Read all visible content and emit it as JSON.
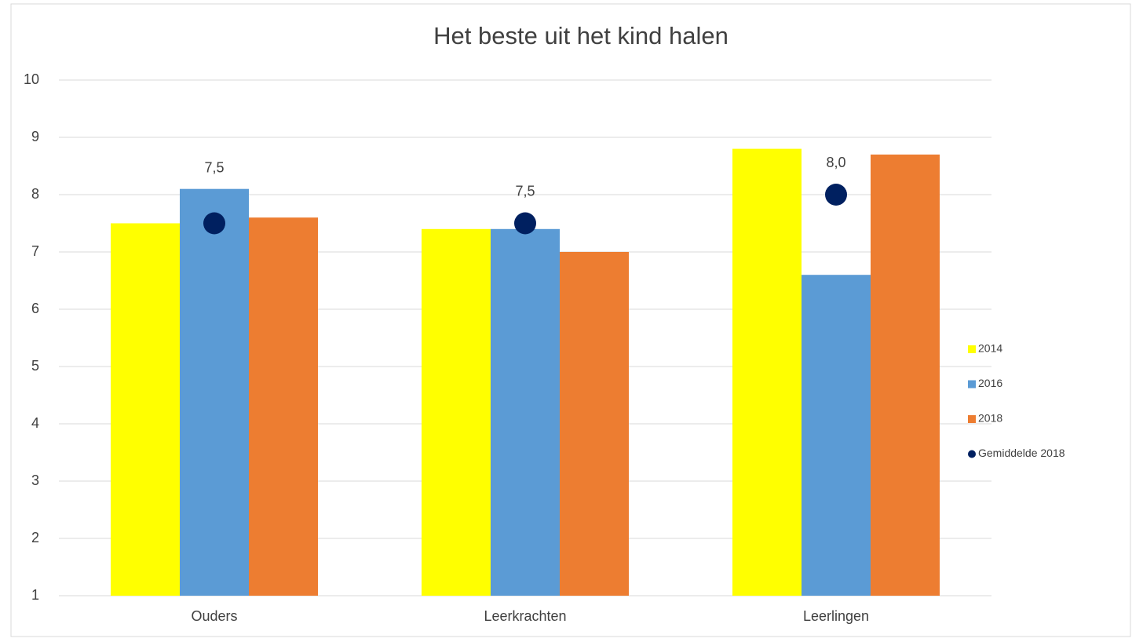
{
  "chart_data": {
    "type": "bar",
    "title": "Het beste uit het kind halen",
    "categories": [
      "Ouders",
      "Leerkrachten",
      "Leerlingen"
    ],
    "series": [
      {
        "name": "2014",
        "color": "#ffff00",
        "values": [
          7.5,
          7.4,
          8.8
        ]
      },
      {
        "name": "2016",
        "color": "#5b9bd5",
        "values": [
          8.1,
          7.4,
          6.6
        ]
      },
      {
        "name": "2018",
        "color": "#ed7d31",
        "values": [
          7.6,
          7.0,
          8.7
        ]
      },
      {
        "name": "Gemiddelde 2018",
        "color": "#002060",
        "type": "scatter",
        "values": [
          7.5,
          7.5,
          8.0
        ],
        "value_labels": [
          "7,5",
          "7,5",
          "8,0"
        ]
      }
    ],
    "ylim": [
      1,
      10
    ],
    "yticks": [
      1,
      2,
      3,
      4,
      5,
      6,
      7,
      8,
      9,
      10
    ],
    "grid": true,
    "legend": "right"
  }
}
